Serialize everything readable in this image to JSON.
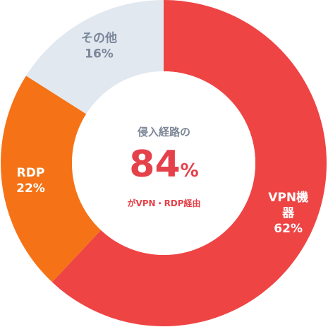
{
  "chart_data": {
    "type": "pie",
    "categories": [
      "VPN機器",
      "RDP",
      "その他"
    ],
    "values": [
      62,
      22,
      16
    ],
    "labels": [
      [
        "VPN機",
        "器",
        "62%"
      ],
      [
        "RDP",
        "22%"
      ],
      [
        "その他",
        "16%"
      ]
    ],
    "colors": [
      "#ef4444",
      "#f57316",
      "#e2e8f0"
    ],
    "label_dark": [
      false,
      false,
      true
    ],
    "center": {
      "caption_top": "侵入経路の",
      "big_number": "84",
      "big_unit": "%",
      "caption_bottom": "がVPN・RDP経由"
    }
  }
}
